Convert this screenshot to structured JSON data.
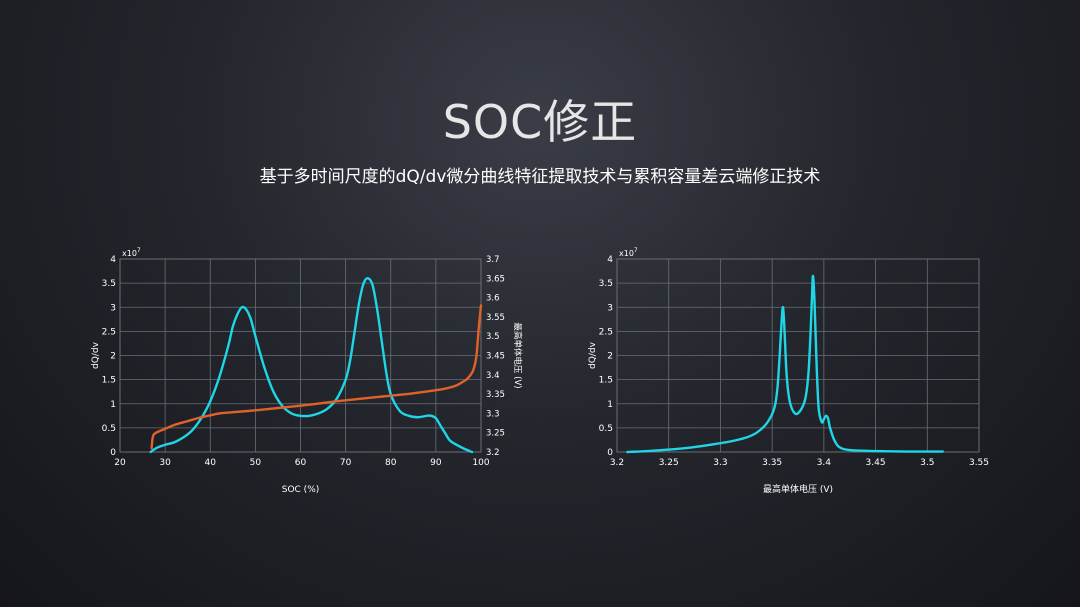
{
  "header": {
    "title": "SOC修正",
    "subtitle": "基于多时间尺度的dQ/dv微分曲线特征提取技术与累积容量差云端修正技术"
  },
  "colors": {
    "cyan": "#1ed6e6",
    "orange": "#e0622a",
    "grid": "#6b6e76"
  },
  "chart_data": [
    {
      "type": "line",
      "xlabel": "SOC (%)",
      "ylabel": "dQ/dv",
      "y2label": "最高单体电压 (V)",
      "y_exponent": "x10^7",
      "xlim": [
        20,
        100
      ],
      "ylim": [
        0,
        4
      ],
      "y2lim": [
        3.2,
        3.7
      ],
      "xticks": [
        "20",
        "30",
        "40",
        "50",
        "60",
        "70",
        "80",
        "90",
        "100"
      ],
      "yticks": [
        "0",
        "0.5",
        "1",
        "1.5",
        "2",
        "2.5",
        "3",
        "3.5",
        "4"
      ],
      "y2ticks": [
        "3.2",
        "3.25",
        "3.3",
        "3.35",
        "3.4",
        "3.45",
        "3.5",
        "3.55",
        "3.6",
        "3.65",
        "3.7"
      ],
      "grid": true,
      "series": [
        {
          "axis": "left",
          "color": "#1ed6e6",
          "x": [
            26.8,
            28,
            30,
            32,
            34,
            36,
            38,
            40,
            42,
            44,
            45,
            46,
            47,
            48,
            49,
            50,
            52,
            54,
            56,
            58,
            60,
            62,
            64,
            66,
            68,
            70,
            71,
            72,
            73,
            74,
            75,
            76,
            77,
            78,
            79,
            80,
            82,
            84,
            86,
            88,
            89,
            90,
            91,
            92,
            93,
            94,
            96,
            98
          ],
          "y": [
            0,
            0.08,
            0.15,
            0.2,
            0.3,
            0.45,
            0.7,
            1.05,
            1.55,
            2.2,
            2.6,
            2.85,
            3.0,
            2.95,
            2.75,
            2.4,
            1.75,
            1.25,
            0.95,
            0.8,
            0.75,
            0.75,
            0.8,
            0.9,
            1.1,
            1.5,
            1.9,
            2.5,
            3.1,
            3.5,
            3.6,
            3.45,
            2.95,
            2.3,
            1.65,
            1.2,
            0.85,
            0.75,
            0.72,
            0.75,
            0.75,
            0.7,
            0.55,
            0.4,
            0.25,
            0.18,
            0.08,
            0
          ]
        },
        {
          "axis": "right",
          "color": "#e0622a",
          "x": [
            27,
            27.3,
            28,
            30,
            32,
            35,
            38,
            40,
            42,
            45,
            50,
            55,
            60,
            65,
            70,
            75,
            80,
            85,
            90,
            92,
            94,
            95,
            96,
            97,
            98,
            98.5,
            99,
            99.5,
            100
          ],
          "y": [
            3.21,
            3.24,
            3.25,
            3.26,
            3.27,
            3.28,
            3.29,
            3.295,
            3.3,
            3.303,
            3.308,
            3.314,
            3.32,
            3.327,
            3.334,
            3.34,
            3.346,
            3.352,
            3.36,
            3.364,
            3.37,
            3.375,
            3.382,
            3.39,
            3.405,
            3.42,
            3.45,
            3.52,
            3.58
          ]
        }
      ]
    },
    {
      "type": "line",
      "xlabel": "最高单体电压 (V)",
      "ylabel": "dQ/dv",
      "y_exponent": "x10^7",
      "xlim": [
        3.2,
        3.55
      ],
      "ylim": [
        0,
        4
      ],
      "xticks": [
        "3.2",
        "3.25",
        "3.3",
        "3.35",
        "3.4",
        "3.45",
        "3.5",
        "3.55"
      ],
      "yticks": [
        "0",
        "0.5",
        "1",
        "1.5",
        "2",
        "2.5",
        "3",
        "3.5",
        "4"
      ],
      "grid": true,
      "series": [
        {
          "axis": "left",
          "color": "#1ed6e6",
          "x": [
            3.21,
            3.23,
            3.25,
            3.27,
            3.29,
            3.31,
            3.325,
            3.335,
            3.345,
            3.352,
            3.355,
            3.357,
            3.359,
            3.3605,
            3.362,
            3.364,
            3.367,
            3.372,
            3.377,
            3.382,
            3.385,
            3.387,
            3.3885,
            3.3895,
            3.391,
            3.393,
            3.395,
            3.398,
            3.4,
            3.402,
            3.404,
            3.406,
            3.41,
            3.415,
            3.425,
            3.45,
            3.48,
            3.515
          ],
          "y": [
            0,
            0.02,
            0.05,
            0.09,
            0.15,
            0.22,
            0.3,
            0.4,
            0.6,
            0.9,
            1.3,
            1.9,
            2.65,
            3.0,
            2.5,
            1.6,
            1.05,
            0.8,
            0.85,
            1.1,
            1.6,
            2.4,
            3.2,
            3.65,
            3.1,
            1.8,
            0.9,
            0.62,
            0.68,
            0.75,
            0.7,
            0.5,
            0.25,
            0.1,
            0.04,
            0.02,
            0.01,
            0.01
          ]
        }
      ]
    }
  ]
}
